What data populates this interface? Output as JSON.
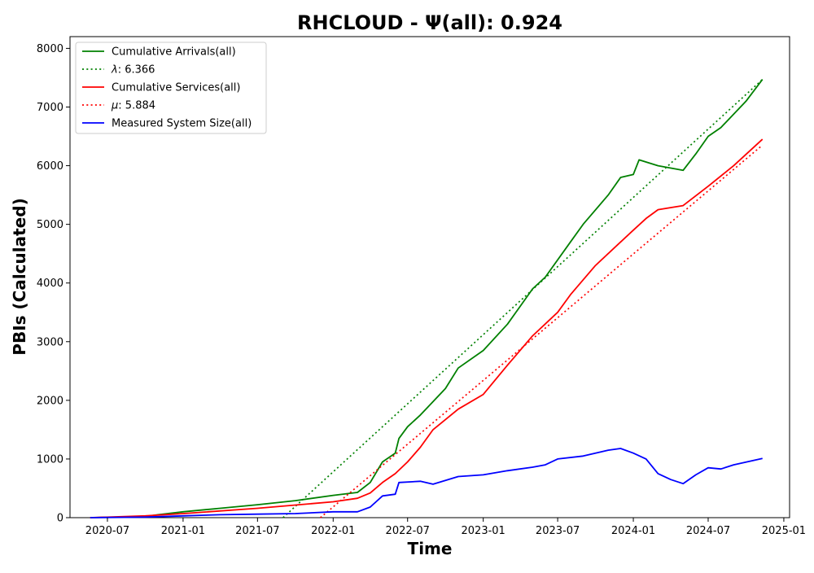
{
  "chart_data": {
    "type": "line",
    "title": "RHCLOUD -  Ψ(all): 0.924",
    "xlabel": "Time",
    "ylabel": "PBIs (Calculated)",
    "x_axis_kind": "date",
    "xlim": [
      "2020-04-01",
      "2025-01-15"
    ],
    "ylim": [
      0,
      8200
    ],
    "x_ticks": [
      "2020-07-01",
      "2021-01-01",
      "2021-07-01",
      "2022-01-01",
      "2022-07-01",
      "2023-01-01",
      "2023-07-01",
      "2024-01-01",
      "2024-07-01",
      "2025-01-01"
    ],
    "x_tick_labels": [
      "2020-07",
      "2021-01",
      "2021-07",
      "2022-01",
      "2022-07",
      "2023-01",
      "2023-07",
      "2024-01",
      "2024-07",
      "2025-01"
    ],
    "y_ticks": [
      0,
      1000,
      2000,
      3000,
      4000,
      5000,
      6000,
      7000,
      8000
    ],
    "y_tick_labels": [
      "0",
      "1000",
      "2000",
      "3000",
      "4000",
      "5000",
      "6000",
      "7000",
      "8000"
    ],
    "grid": false,
    "legend_position": "top-left",
    "series": [
      {
        "name": "Cumulative Arrivals(all)",
        "color": "#008000",
        "style": "solid",
        "points": [
          [
            "2020-05-20",
            0
          ],
          [
            "2020-10-01",
            20
          ],
          [
            "2020-11-01",
            50
          ],
          [
            "2021-01-01",
            100
          ],
          [
            "2021-04-01",
            160
          ],
          [
            "2021-07-01",
            220
          ],
          [
            "2021-10-01",
            290
          ],
          [
            "2022-01-01",
            380
          ],
          [
            "2022-03-01",
            430
          ],
          [
            "2022-04-01",
            600
          ],
          [
            "2022-05-01",
            950
          ],
          [
            "2022-06-01",
            1100
          ],
          [
            "2022-06-10",
            1350
          ],
          [
            "2022-07-01",
            1550
          ],
          [
            "2022-08-01",
            1750
          ],
          [
            "2022-10-01",
            2200
          ],
          [
            "2022-11-01",
            2550
          ],
          [
            "2023-01-01",
            2850
          ],
          [
            "2023-03-01",
            3300
          ],
          [
            "2023-05-01",
            3900
          ],
          [
            "2023-06-01",
            4100
          ],
          [
            "2023-08-01",
            4700
          ],
          [
            "2023-09-01",
            5000
          ],
          [
            "2023-11-01",
            5500
          ],
          [
            "2023-12-01",
            5800
          ],
          [
            "2024-01-01",
            5850
          ],
          [
            "2024-01-15",
            6100
          ],
          [
            "2024-03-01",
            6000
          ],
          [
            "2024-05-01",
            5920
          ],
          [
            "2024-06-01",
            6200
          ],
          [
            "2024-07-01",
            6500
          ],
          [
            "2024-08-01",
            6650
          ],
          [
            "2024-10-01",
            7100
          ],
          [
            "2024-11-10",
            7470
          ]
        ]
      },
      {
        "name": "λ: 6.366",
        "name_prefix": "λ",
        "name_suffix": ": 6.366",
        "color": "#008000",
        "style": "dotted",
        "points": [
          [
            "2021-09-01",
            0
          ],
          [
            "2024-11-10",
            7470
          ]
        ]
      },
      {
        "name": "Cumulative Services(all)",
        "color": "#ff0000",
        "style": "solid",
        "points": [
          [
            "2020-05-20",
            0
          ],
          [
            "2020-10-01",
            30
          ],
          [
            "2021-01-01",
            70
          ],
          [
            "2021-07-01",
            160
          ],
          [
            "2022-01-01",
            270
          ],
          [
            "2022-03-01",
            330
          ],
          [
            "2022-04-01",
            420
          ],
          [
            "2022-05-01",
            600
          ],
          [
            "2022-06-01",
            750
          ],
          [
            "2022-07-01",
            950
          ],
          [
            "2022-08-01",
            1200
          ],
          [
            "2022-09-01",
            1500
          ],
          [
            "2022-11-01",
            1850
          ],
          [
            "2023-01-01",
            2100
          ],
          [
            "2023-03-01",
            2600
          ],
          [
            "2023-05-01",
            3100
          ],
          [
            "2023-07-01",
            3500
          ],
          [
            "2023-08-01",
            3800
          ],
          [
            "2023-10-01",
            4300
          ],
          [
            "2023-12-01",
            4700
          ],
          [
            "2024-01-01",
            4900
          ],
          [
            "2024-02-01",
            5100
          ],
          [
            "2024-03-01",
            5250
          ],
          [
            "2024-05-01",
            5320
          ],
          [
            "2024-07-01",
            5650
          ],
          [
            "2024-09-01",
            6000
          ],
          [
            "2024-11-10",
            6450
          ]
        ]
      },
      {
        "name": "μ: 5.884",
        "name_prefix": "μ",
        "name_suffix": ": 5.884",
        "color": "#ff0000",
        "style": "dotted",
        "points": [
          [
            "2021-12-01",
            0
          ],
          [
            "2024-11-10",
            6350
          ]
        ]
      },
      {
        "name": "Measured System Size(all)",
        "color": "#0000ff",
        "style": "solid",
        "points": [
          [
            "2020-05-20",
            0
          ],
          [
            "2020-10-01",
            10
          ],
          [
            "2021-01-01",
            30
          ],
          [
            "2021-04-01",
            50
          ],
          [
            "2021-07-01",
            60
          ],
          [
            "2021-10-01",
            70
          ],
          [
            "2022-01-01",
            100
          ],
          [
            "2022-03-01",
            100
          ],
          [
            "2022-04-01",
            180
          ],
          [
            "2022-05-01",
            370
          ],
          [
            "2022-06-01",
            400
          ],
          [
            "2022-06-10",
            600
          ],
          [
            "2022-08-01",
            620
          ],
          [
            "2022-09-01",
            570
          ],
          [
            "2022-11-01",
            700
          ],
          [
            "2023-01-01",
            730
          ],
          [
            "2023-03-01",
            800
          ],
          [
            "2023-05-01",
            860
          ],
          [
            "2023-06-01",
            900
          ],
          [
            "2023-07-01",
            1000
          ],
          [
            "2023-09-01",
            1050
          ],
          [
            "2023-11-01",
            1150
          ],
          [
            "2023-12-01",
            1180
          ],
          [
            "2024-01-01",
            1100
          ],
          [
            "2024-02-01",
            1000
          ],
          [
            "2024-03-01",
            750
          ],
          [
            "2024-04-01",
            650
          ],
          [
            "2024-05-01",
            580
          ],
          [
            "2024-06-01",
            730
          ],
          [
            "2024-07-01",
            850
          ],
          [
            "2024-08-01",
            830
          ],
          [
            "2024-09-01",
            900
          ],
          [
            "2024-11-10",
            1010
          ]
        ]
      }
    ]
  }
}
